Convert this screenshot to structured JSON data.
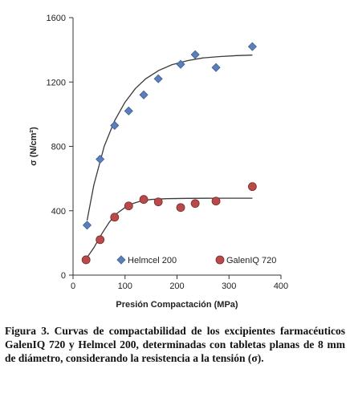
{
  "chart_data": {
    "type": "scatter",
    "title": "",
    "xlabel": "Presión Compactación (MPa)",
    "ylabel": "σ (N/cm²)",
    "xlim": [
      0,
      400
    ],
    "ylim": [
      0,
      1600
    ],
    "xticks": [
      0,
      100,
      200,
      300,
      400
    ],
    "yticks": [
      0,
      400,
      800,
      1200,
      1600
    ],
    "grid": false,
    "legend_position": "bottom",
    "series": [
      {
        "name": "Helmcel 200",
        "marker": "diamond",
        "color": "#5b7fb8",
        "x": [
          27,
          52,
          80,
          107,
          136,
          164,
          207,
          235,
          275,
          345
        ],
        "y": [
          310,
          720,
          930,
          1020,
          1120,
          1220,
          1310,
          1370,
          1290,
          1420
        ],
        "trend_x": [
          27,
          40,
          60,
          80,
          100,
          120,
          140,
          165,
          190,
          220,
          250,
          280,
          315,
          345
        ],
        "trend_y": [
          340,
          560,
          800,
          960,
          1075,
          1160,
          1220,
          1272,
          1307,
          1333,
          1350,
          1358,
          1364,
          1367
        ]
      },
      {
        "name": "GalenIQ 720",
        "marker": "circle",
        "color": "#b84a4a",
        "x": [
          25,
          52,
          80,
          107,
          136,
          164,
          207,
          235,
          275,
          345
        ],
        "y": [
          95,
          220,
          360,
          430,
          470,
          455,
          420,
          445,
          460,
          550
        ],
        "trend_x": [
          25,
          40,
          55,
          70,
          85,
          100,
          115,
          130,
          150,
          180,
          220,
          280,
          345
        ],
        "trend_y": [
          100,
          170,
          255,
          330,
          385,
          420,
          445,
          460,
          470,
          475,
          477,
          478,
          478
        ]
      }
    ]
  },
  "caption": "Figura 3. Curvas de compactabilidad de los excipientes farmacéuticos GalenIQ 720 y Helmcel 200, determinadas con tabletas planas de 8 mm de diámetro, considerando la resistencia a la tensión (σ)."
}
